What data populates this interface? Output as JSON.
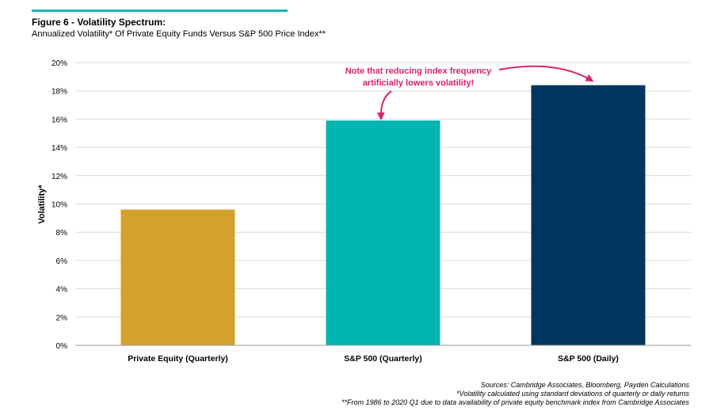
{
  "header": {
    "title": "Figure 6 - Volatility Spectrum:",
    "subtitle": "Annualized Volatility* Of Private Equity Funds Versus S&P 500 Price Index**"
  },
  "colors": {
    "accent_rule": "#1ab8b0",
    "annotation": "#d6246e",
    "gridline": "#d9d9d9",
    "axis": "#9a9a9a"
  },
  "chart_data": {
    "type": "bar",
    "categories": [
      "Private Equity (Quarterly)",
      "S&P 500 (Quarterly)",
      "S&P 500 (Daily)"
    ],
    "series": [
      {
        "values": [
          9.6,
          15.9,
          18.4
        ],
        "colors": [
          "#d4a12c",
          "#00b5b0",
          "#00355f"
        ]
      }
    ],
    "ylabel": "Volatility*",
    "ylim": [
      0,
      20
    ],
    "yticks": [
      "0%",
      "2%",
      "4%",
      "6%",
      "8%",
      "10%",
      "12%",
      "14%",
      "16%",
      "18%",
      "20%"
    ],
    "grid": true,
    "annotation": {
      "lines": [
        "Note that reducing index frequency",
        "artificially lowers volatility!"
      ]
    }
  },
  "footer": {
    "sources": "Sources: Cambridge Associates, Bloomberg, Payden Calculations",
    "note1": "*Volatility calculated using standard deviations of quarterly or daily returns",
    "note2": "**From 1986 to 2020 Q1 due to data availability of private equity benchmark index from Cambridge Associates"
  }
}
